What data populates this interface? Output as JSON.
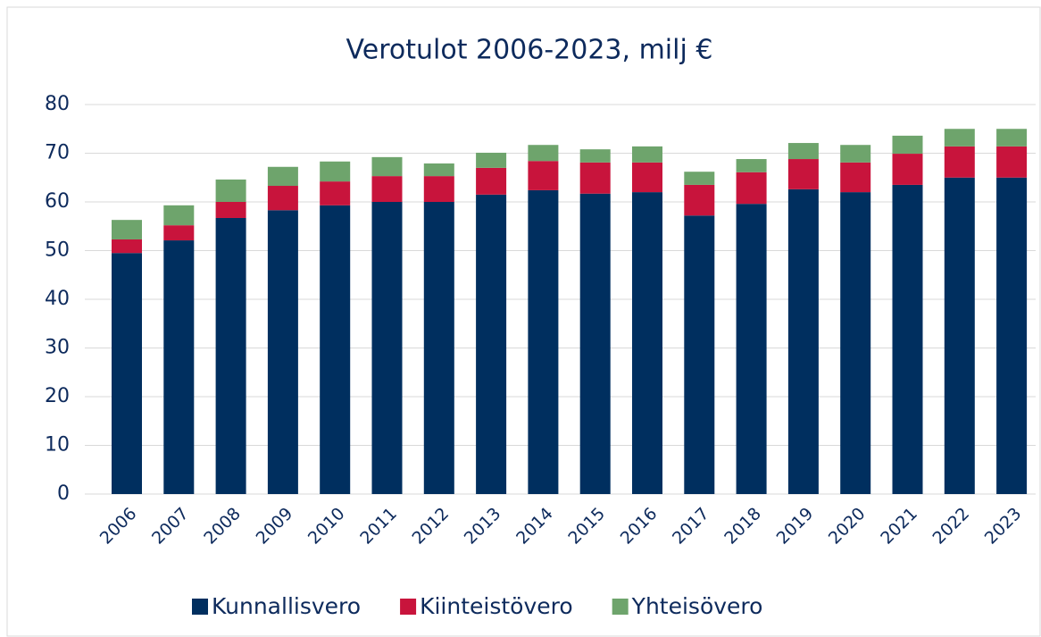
{
  "chart_data": {
    "type": "stacked_bar",
    "title": "Verotulot 2006-2023, milj €",
    "categories": [
      "2006",
      "2007",
      "2008",
      "2009",
      "2010",
      "2011",
      "2012",
      "2013",
      "2014",
      "2015",
      "2016",
      "2017",
      "2018",
      "2019",
      "2020",
      "2021",
      "2022",
      "2023"
    ],
    "series": [
      {
        "name": "Kunnallisvero",
        "color": "#002f5f",
        "values": [
          49.5,
          52.1,
          56.7,
          58.3,
          59.3,
          60.0,
          60.0,
          61.5,
          62.4,
          61.7,
          62.0,
          57.2,
          59.6,
          62.6,
          62.0,
          63.5,
          65.0,
          65.0
        ]
      },
      {
        "name": "Kiinteistövero",
        "color": "#c8143c",
        "values": [
          2.8,
          3.1,
          3.3,
          5.0,
          4.9,
          5.3,
          5.3,
          5.5,
          6.0,
          6.4,
          6.1,
          6.3,
          6.5,
          6.2,
          6.1,
          6.4,
          6.4,
          6.4
        ]
      },
      {
        "name": "Yhteisövero",
        "color": "#6ea46c",
        "values": [
          4.0,
          4.1,
          4.6,
          3.9,
          4.1,
          3.9,
          2.6,
          3.1,
          3.3,
          2.7,
          3.3,
          2.7,
          2.7,
          3.3,
          3.6,
          3.7,
          3.6,
          3.6
        ]
      }
    ],
    "ylim": [
      0,
      80
    ],
    "yticks": [
      0,
      10,
      20,
      30,
      40,
      50,
      60,
      70,
      80
    ],
    "grid": true,
    "legend": "bottom"
  }
}
